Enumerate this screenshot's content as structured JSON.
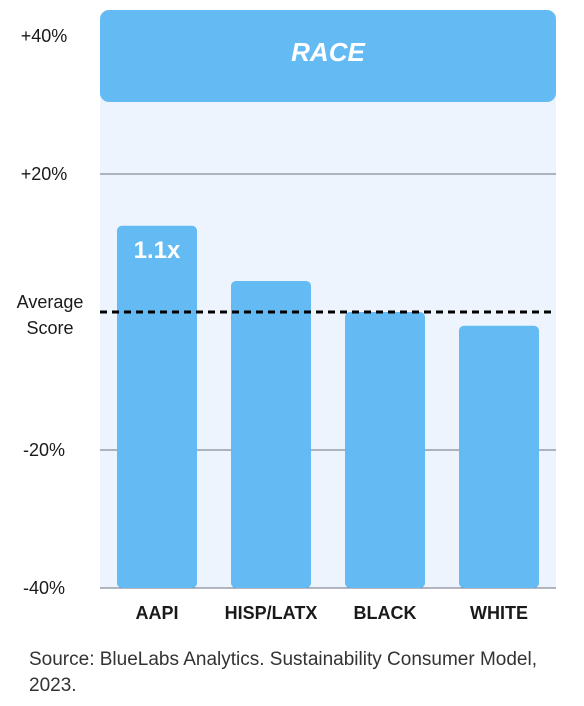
{
  "chart_data": {
    "type": "bar",
    "title": "RACE",
    "categories": [
      "AAPI",
      "HISP/LATX",
      "BLACK",
      "WHITE"
    ],
    "values": [
      12.5,
      4.5,
      0,
      -2
    ],
    "data_labels": [
      "1.1x",
      "",
      "",
      ""
    ],
    "ylim": [
      -40,
      40
    ],
    "yticks": [
      {
        "value": 40,
        "label": "+40%"
      },
      {
        "value": 20,
        "label": "+20%"
      },
      {
        "value": -20,
        "label": "-20%"
      },
      {
        "value": -40,
        "label": "-40%"
      }
    ],
    "reference_line": {
      "value": 0,
      "label_lines": [
        "Average",
        "Score"
      ]
    },
    "grid": true,
    "xlabel": "",
    "ylabel": ""
  },
  "colors": {
    "bar": "#64bbf4",
    "panel_background": "#edf4fd",
    "gridline": "#6b7280",
    "reference_line": "#000000"
  },
  "source": "Source: BlueLabs Analytics. Sustainability Consumer Model, 2023."
}
